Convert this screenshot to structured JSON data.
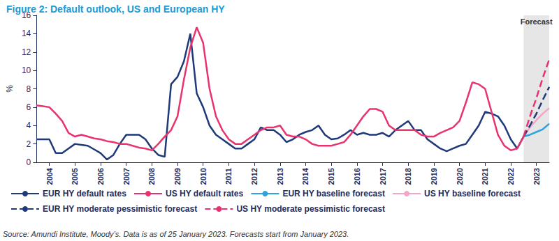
{
  "chart_data": {
    "type": "line",
    "title": "Figure 2: Default outlook, US and European HY",
    "source": "Source: Amundi Institute, Moody’s. Data is as of 25 January 2023. Forecasts start from January 2023.",
    "annotation": "Forecast",
    "y_label": "%",
    "ylim": [
      0,
      16
    ],
    "yticks": [
      0,
      2,
      4,
      6,
      8,
      10,
      12,
      14,
      16
    ],
    "grid": false,
    "legend": "bottom",
    "categories": [
      null,
      null,
      "2004",
      null,
      null,
      null,
      "2005",
      null,
      null,
      null,
      "2006",
      null,
      null,
      null,
      "2007",
      null,
      null,
      null,
      "2008",
      null,
      null,
      null,
      "2009",
      null,
      null,
      null,
      "2010",
      null,
      null,
      null,
      "2011",
      null,
      null,
      null,
      "2012",
      null,
      null,
      null,
      "2013",
      null,
      null,
      null,
      "2014",
      null,
      null,
      null,
      "2015",
      null,
      null,
      null,
      "2016",
      null,
      null,
      null,
      "2017",
      null,
      null,
      null,
      "2018",
      null,
      null,
      null,
      "2019",
      null,
      null,
      null,
      "2020",
      null,
      null,
      null,
      "2021",
      null,
      null,
      null,
      "2022",
      null,
      null,
      null,
      "2023",
      null,
      null
    ],
    "series": [
      {
        "name": "EUR HY default rates",
        "color": "#1f3a7a",
        "line_style": "solid",
        "values": [
          2.5,
          2.5,
          2.5,
          1,
          1,
          1.5,
          2,
          1.9,
          1.8,
          1.4,
          1,
          0.3,
          0.8,
          2,
          3,
          3,
          3,
          2.5,
          1.5,
          0.8,
          0.6,
          8.5,
          9.3,
          11,
          14,
          7.5,
          6,
          4,
          3,
          2.5,
          2,
          1.5,
          1.5,
          2,
          2.5,
          3.8,
          3.5,
          3.5,
          3,
          2.2,
          2.5,
          3,
          3.3,
          3.5,
          4,
          3,
          2.5,
          2.6,
          3,
          3.5,
          3,
          3.2,
          3,
          3,
          3.2,
          2.8,
          3.5,
          4,
          4.5,
          3.5,
          3.5,
          2.5,
          2,
          1.5,
          1.2,
          1.5,
          1.8,
          2,
          3,
          4,
          5.5,
          5.3,
          5,
          4,
          2.5,
          1.5,
          2.8,
          null,
          null,
          null,
          null
        ]
      },
      {
        "name": "US HY default rates",
        "color": "#e8336d",
        "line_style": "solid",
        "values": [
          6.2,
          6.1,
          6,
          5.3,
          4.5,
          3.2,
          2.8,
          3,
          2.8,
          2.6,
          2.5,
          2.3,
          2.2,
          2,
          2,
          1.8,
          1.6,
          1.5,
          1.3,
          2,
          2.8,
          3.5,
          5,
          9,
          12.5,
          14.7,
          13,
          8,
          5,
          3.5,
          2.5,
          2,
          2,
          2.5,
          3,
          3.5,
          3.8,
          3.8,
          4,
          3,
          2.8,
          2.8,
          2.5,
          2,
          1.8,
          1.8,
          1.8,
          2,
          2.2,
          3,
          4,
          5,
          5.8,
          5.8,
          5.5,
          4,
          3.5,
          3.5,
          3.5,
          3.5,
          3,
          2.8,
          2.8,
          3.2,
          3.5,
          3.8,
          4.5,
          6.5,
          8.7,
          8.5,
          8,
          5.5,
          3,
          1.8,
          1.3,
          1.5,
          2.8,
          null,
          null,
          null,
          null
        ]
      },
      {
        "name": "EUR HY baseline forecast",
        "color": "#2ea3e0",
        "line_style": "solid",
        "values": [
          null,
          null,
          null,
          null,
          null,
          null,
          null,
          null,
          null,
          null,
          null,
          null,
          null,
          null,
          null,
          null,
          null,
          null,
          null,
          null,
          null,
          null,
          null,
          null,
          null,
          null,
          null,
          null,
          null,
          null,
          null,
          null,
          null,
          null,
          null,
          null,
          null,
          null,
          null,
          null,
          null,
          null,
          null,
          null,
          null,
          null,
          null,
          null,
          null,
          null,
          null,
          null,
          null,
          null,
          null,
          null,
          null,
          null,
          null,
          null,
          null,
          null,
          null,
          null,
          null,
          null,
          null,
          null,
          null,
          null,
          null,
          null,
          null,
          null,
          null,
          null,
          2.8,
          3,
          3.3,
          3.6,
          4.2
        ]
      },
      {
        "name": "US HY baseline forecast",
        "color": "#f4a6c8",
        "line_style": "solid",
        "values": [
          null,
          null,
          null,
          null,
          null,
          null,
          null,
          null,
          null,
          null,
          null,
          null,
          null,
          null,
          null,
          null,
          null,
          null,
          null,
          null,
          null,
          null,
          null,
          null,
          null,
          null,
          null,
          null,
          null,
          null,
          null,
          null,
          null,
          null,
          null,
          null,
          null,
          null,
          null,
          null,
          null,
          null,
          null,
          null,
          null,
          null,
          null,
          null,
          null,
          null,
          null,
          null,
          null,
          null,
          null,
          null,
          null,
          null,
          null,
          null,
          null,
          null,
          null,
          null,
          null,
          null,
          null,
          null,
          null,
          null,
          null,
          null,
          null,
          null,
          null,
          null,
          2.8,
          3.8,
          4.6,
          5.3,
          5.9
        ]
      },
      {
        "name": "EUR HY moderate pessimistic forecast",
        "color": "#1f3a7a",
        "line_style": "dashed",
        "values": [
          null,
          null,
          null,
          null,
          null,
          null,
          null,
          null,
          null,
          null,
          null,
          null,
          null,
          null,
          null,
          null,
          null,
          null,
          null,
          null,
          null,
          null,
          null,
          null,
          null,
          null,
          null,
          null,
          null,
          null,
          null,
          null,
          null,
          null,
          null,
          null,
          null,
          null,
          null,
          null,
          null,
          null,
          null,
          null,
          null,
          null,
          null,
          null,
          null,
          null,
          null,
          null,
          null,
          null,
          null,
          null,
          null,
          null,
          null,
          null,
          null,
          null,
          null,
          null,
          null,
          null,
          null,
          null,
          null,
          null,
          null,
          null,
          null,
          null,
          null,
          null,
          2.8,
          4,
          5.3,
          6.8,
          8.2
        ]
      },
      {
        "name": "US HY moderate pessimistic forecast",
        "color": "#e8336d",
        "line_style": "dashed",
        "values": [
          null,
          null,
          null,
          null,
          null,
          null,
          null,
          null,
          null,
          null,
          null,
          null,
          null,
          null,
          null,
          null,
          null,
          null,
          null,
          null,
          null,
          null,
          null,
          null,
          null,
          null,
          null,
          null,
          null,
          null,
          null,
          null,
          null,
          null,
          null,
          null,
          null,
          null,
          null,
          null,
          null,
          null,
          null,
          null,
          null,
          null,
          null,
          null,
          null,
          null,
          null,
          null,
          null,
          null,
          null,
          null,
          null,
          null,
          null,
          null,
          null,
          null,
          null,
          null,
          null,
          null,
          null,
          null,
          null,
          null,
          null,
          null,
          null,
          null,
          null,
          null,
          2.8,
          5,
          7,
          9.2,
          11.2
        ]
      }
    ]
  }
}
